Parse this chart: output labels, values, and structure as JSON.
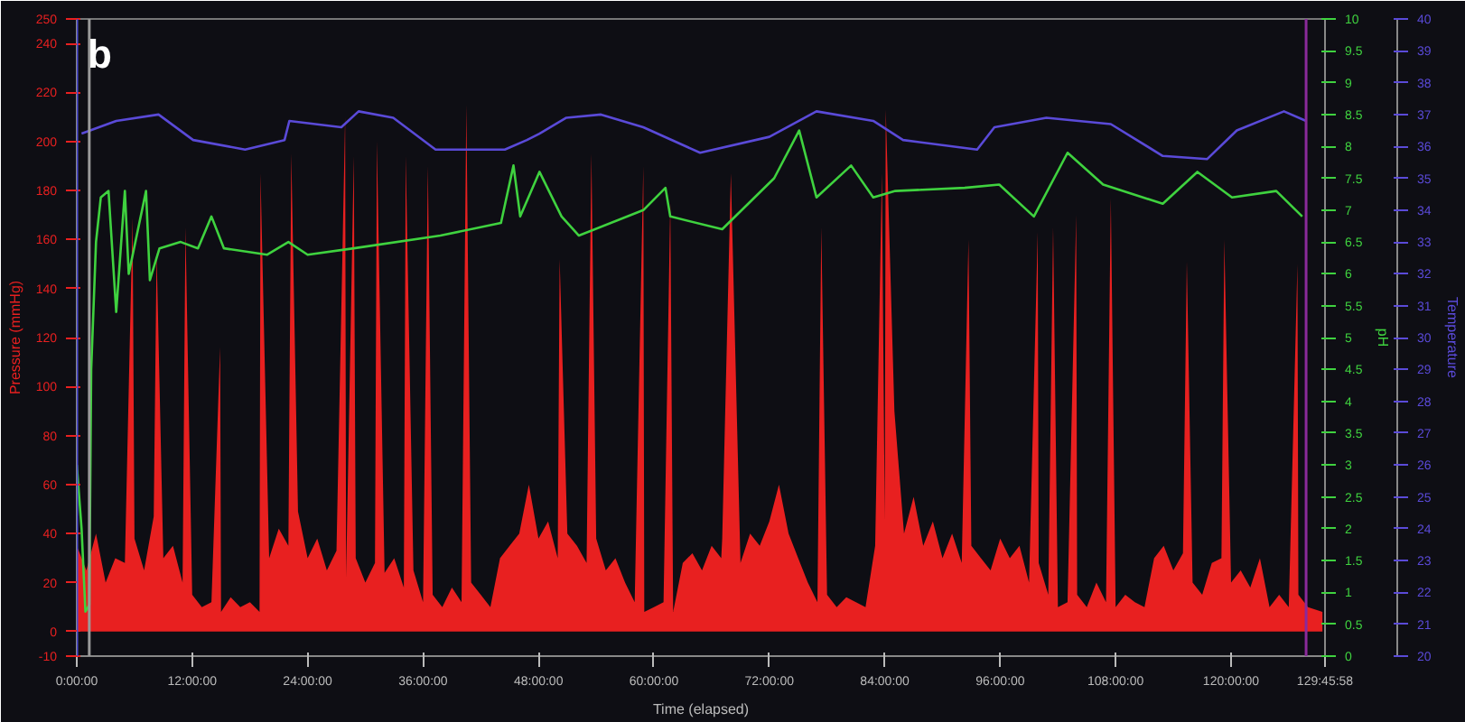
{
  "chart_data": {
    "type": "line",
    "title": "b",
    "xlabel": "Time (elapsed)",
    "ylabel": "Pressure (mmHg)",
    "y2label": "pH",
    "y3label": "Temperature",
    "xlim": [
      0,
      129.766
    ],
    "xticks": [
      {
        "value": 0,
        "label": "0:00:00"
      },
      {
        "value": 12,
        "label": "12:00:00"
      },
      {
        "value": 24,
        "label": "24:00:00"
      },
      {
        "value": 36,
        "label": "36:00:00"
      },
      {
        "value": 48,
        "label": "48:00:00"
      },
      {
        "value": 60,
        "label": "60:00:00"
      },
      {
        "value": 72,
        "label": "72:00:00"
      },
      {
        "value": 84,
        "label": "84:00:00"
      },
      {
        "value": 96,
        "label": "96:00:00"
      },
      {
        "value": 108,
        "label": "108:00:00"
      },
      {
        "value": 120,
        "label": "120:00:00"
      },
      {
        "value": 129.766,
        "label": "129:45:58"
      }
    ],
    "ylim": [
      -10,
      250
    ],
    "yticks": [
      -10,
      0,
      20,
      40,
      60,
      80,
      100,
      120,
      140,
      160,
      180,
      200,
      220,
      240,
      250
    ],
    "y2lim": [
      0,
      10
    ],
    "y2ticks": [
      0,
      0.5,
      1,
      1.5,
      2,
      2.5,
      3,
      3.5,
      4,
      4.5,
      5,
      5.5,
      6,
      6.5,
      7,
      7.5,
      8,
      8.5,
      9,
      9.5,
      10
    ],
    "y3lim": [
      20,
      40
    ],
    "y3ticks": [
      20,
      21,
      22,
      23,
      24,
      25,
      26,
      27,
      28,
      29,
      30,
      31,
      32,
      33,
      34,
      35,
      36,
      37,
      38,
      39,
      40
    ],
    "grid": false,
    "ref_lines": [
      {
        "axis": "x",
        "value": 0,
        "color": "#4a4ad0"
      },
      {
        "axis": "x",
        "value": 1.3,
        "color": "#9a9a9a"
      },
      {
        "axis": "x",
        "value": 127.8,
        "color": "#8a2a9a"
      }
    ],
    "series": [
      {
        "type": "area",
        "color": "#e82020",
        "x": [
          0,
          1,
          2,
          3,
          4,
          5,
          5.8,
          6,
          7,
          8,
          8.3,
          9,
          10,
          11,
          11.3,
          12,
          13,
          14,
          14.9,
          15,
          16,
          17,
          18,
          19,
          19.1,
          20,
          21,
          22,
          22.3,
          23,
          24,
          25,
          26,
          27,
          27.9,
          28,
          28.8,
          29,
          30,
          31,
          31.2,
          32,
          33,
          34,
          34.2,
          35,
          36,
          36.5,
          37,
          38,
          39,
          40,
          40.5,
          41,
          42,
          43,
          44,
          45,
          46,
          47,
          48,
          49,
          50,
          50.2,
          51,
          52,
          53,
          53.5,
          54,
          55,
          56,
          57,
          58,
          58.9,
          59,
          60,
          61,
          61.7,
          62,
          63,
          64,
          65,
          66,
          67,
          67.1,
          68,
          69,
          70,
          71,
          72,
          73,
          74,
          75,
          76,
          77,
          77.4,
          78,
          79,
          80,
          81,
          82,
          83,
          83.7,
          84,
          84.1,
          85,
          86,
          87,
          88,
          89,
          90,
          91,
          92,
          92.7,
          93,
          94,
          95,
          96,
          97,
          98,
          99,
          99.9,
          100,
          101,
          101.5,
          102,
          103,
          103.9,
          104,
          105,
          106,
          107,
          107.5,
          108,
          109,
          110,
          111,
          112,
          113,
          114,
          115,
          115.4,
          116,
          117,
          118,
          119,
          119.3,
          120,
          121,
          122,
          123,
          124,
          125,
          126,
          126.9,
          127,
          128,
          129.5
        ],
        "values": [
          35,
          25,
          40,
          20,
          30,
          28,
          169,
          38,
          25,
          47,
          155,
          30,
          35,
          20,
          165,
          15,
          10,
          12,
          116,
          8,
          14,
          10,
          12,
          8,
          187,
          30,
          42,
          35,
          195,
          49,
          30,
          38,
          25,
          33,
          210,
          22,
          194,
          30,
          20,
          28,
          200,
          24,
          30,
          18,
          194,
          25,
          12,
          190,
          15,
          10,
          18,
          12,
          215,
          20,
          15,
          10,
          30,
          35,
          40,
          60,
          38,
          45,
          30,
          152,
          40,
          35,
          28,
          195,
          38,
          25,
          30,
          20,
          12,
          190,
          8,
          10,
          12,
          175,
          8,
          28,
          32,
          25,
          35,
          30,
          38,
          187,
          28,
          40,
          35,
          45,
          60,
          40,
          30,
          20,
          12,
          165,
          15,
          10,
          14,
          12,
          10,
          35,
          187,
          45,
          213,
          90,
          40,
          55,
          35,
          45,
          30,
          40,
          28,
          160,
          35,
          30,
          25,
          38,
          30,
          35,
          20,
          163,
          28,
          15,
          165,
          10,
          12,
          170,
          15,
          10,
          20,
          12,
          177,
          10,
          15,
          12,
          10,
          30,
          35,
          25,
          32,
          151,
          20,
          15,
          28,
          30,
          160,
          20,
          25,
          18,
          30,
          10,
          15,
          10,
          150,
          15,
          10,
          8
        ]
      },
      {
        "axis": "y2",
        "color": "#3fd23f",
        "x": [
          0,
          0.5,
          0.9,
          1.3,
          1.5,
          2.0,
          2.5,
          3.3,
          4.1,
          5.0,
          5.4,
          7.2,
          7.6,
          8.6,
          10.8,
          12.6,
          14.0,
          15.3,
          19.8,
          22,
          24,
          28.8,
          37.8,
          44.1,
          45.4,
          46.1,
          48.1,
          50.4,
          52.2,
          58.9,
          61.2,
          61.7,
          67.1,
          72.5,
          75.1,
          76.9,
          80.5,
          82.8,
          85.1,
          92.3,
          95.9,
          99.5,
          103.0,
          106.7,
          112.9,
          116.5,
          120.1,
          124.7,
          127.4
        ],
        "values": [
          3.0,
          2.0,
          0.7,
          0.8,
          4.5,
          6.5,
          7.2,
          7.3,
          5.4,
          7.3,
          6.0,
          7.3,
          5.9,
          6.4,
          6.5,
          6.4,
          6.9,
          6.4,
          6.3,
          6.5,
          6.3,
          6.4,
          6.6,
          6.8,
          7.7,
          6.9,
          7.6,
          6.9,
          6.6,
          7.0,
          7.35,
          6.9,
          6.7,
          7.5,
          8.25,
          7.2,
          7.7,
          7.2,
          7.3,
          7.35,
          7.4,
          6.9,
          7.9,
          7.4,
          7.1,
          7.6,
          7.2,
          7.3,
          6.9
        ]
      },
      {
        "axis": "y3",
        "color": "#5a4ad8",
        "x": [
          0.5,
          4.1,
          8.5,
          12.1,
          17.5,
          21.6,
          22.1,
          27.5,
          29.3,
          32.9,
          37.3,
          44.5,
          46.8,
          48.1,
          50.9,
          54.5,
          58.9,
          64.8,
          72.0,
          76.9,
          82.8,
          85.9,
          93.6,
          95.4,
          100.8,
          107.5,
          112.9,
          117.5,
          120.6,
          125.5,
          127.8
        ],
        "values": [
          36.4,
          36.8,
          37.0,
          36.2,
          35.9,
          36.2,
          36.8,
          36.6,
          37.1,
          36.9,
          35.9,
          35.9,
          36.2,
          36.4,
          36.9,
          37.0,
          36.6,
          35.8,
          36.3,
          37.1,
          36.8,
          36.2,
          35.9,
          36.6,
          36.9,
          36.7,
          35.7,
          35.6,
          36.5,
          37.1,
          36.8
        ]
      }
    ]
  }
}
